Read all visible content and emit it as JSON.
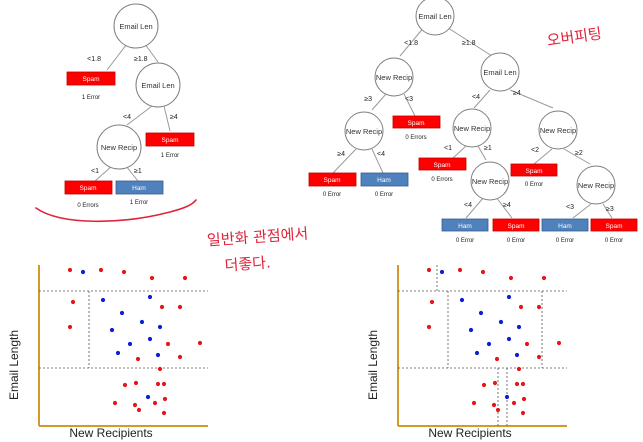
{
  "left_tree": {
    "root": "Email Len",
    "split1_left": "<1.8",
    "split1_right": "≥1.8",
    "leaf1": "Spam",
    "leaf1_count": "1 Error",
    "node2": "Email Len",
    "split2_left": "<4",
    "split2_right": "≥4",
    "leaf2": "Spam",
    "leaf2_count": "1 Error",
    "node3": "New Recip",
    "split3_left": "<1",
    "split3_right": "≥1",
    "leaf3": "Spam",
    "leaf3_count": "0 Errors",
    "leaf4": "Ham",
    "leaf4_count": "1 Error"
  },
  "right_tree": {
    "root": "Email Len",
    "s_root_l": "<1.8",
    "s_root_r": "≥1.8",
    "n_l": "New Recip",
    "s_nl_l": "≥3",
    "s_nl_r": "<3",
    "n_ll": "New Recip",
    "s_nll_l": "≥4",
    "s_nll_r": "<4",
    "leaf_a": "Spam",
    "leaf_a_count": "0 Error",
    "leaf_b": "Ham",
    "leaf_b_count": "0 Error",
    "leaf_c": "Spam",
    "leaf_c_count": "0 Errors",
    "n_r": "Email Len",
    "s_nr_l": "<4",
    "s_nr_r": "≥4",
    "n_rl": "New Recip",
    "s_nrl_l": "<1",
    "s_nrl_r": "≥1",
    "leaf_d": "Spam",
    "leaf_d_count": "0 Errors",
    "n_rlr": "New Recip",
    "s_nrlr_l": "<4",
    "s_nrlr_r": "≥4",
    "leaf_e": "Ham",
    "leaf_e_count": "0 Error",
    "leaf_f": "Spam",
    "leaf_f_count": "0 Error",
    "n_rr": "New Recip",
    "s_nrr_l": "<2",
    "s_nrr_r": "≥2",
    "leaf_g": "Spam",
    "leaf_g_count": "0 Error",
    "n_rrr": "New Recip",
    "s_nrrr_l": "<3",
    "s_nrrr_r": "≥3",
    "leaf_h": "Ham",
    "leaf_h_count": "0 Error",
    "leaf_i": "Spam",
    "leaf_i_count": "0 Error"
  },
  "annotations": {
    "overfit_note": "오버피팅",
    "generalization_note_line1": "일반화 관점에서",
    "generalization_note_line2": "더좋다."
  },
  "plots": {
    "x_label": "New Recipients",
    "y_label": "Email Length"
  },
  "colors": {
    "spam": "#ff0000",
    "ham": "#4f81bd",
    "red_point": "#e8141c",
    "blue_point": "#0b1fd6",
    "axis": "#d19a2a",
    "handwriting": "#e0233a"
  }
}
